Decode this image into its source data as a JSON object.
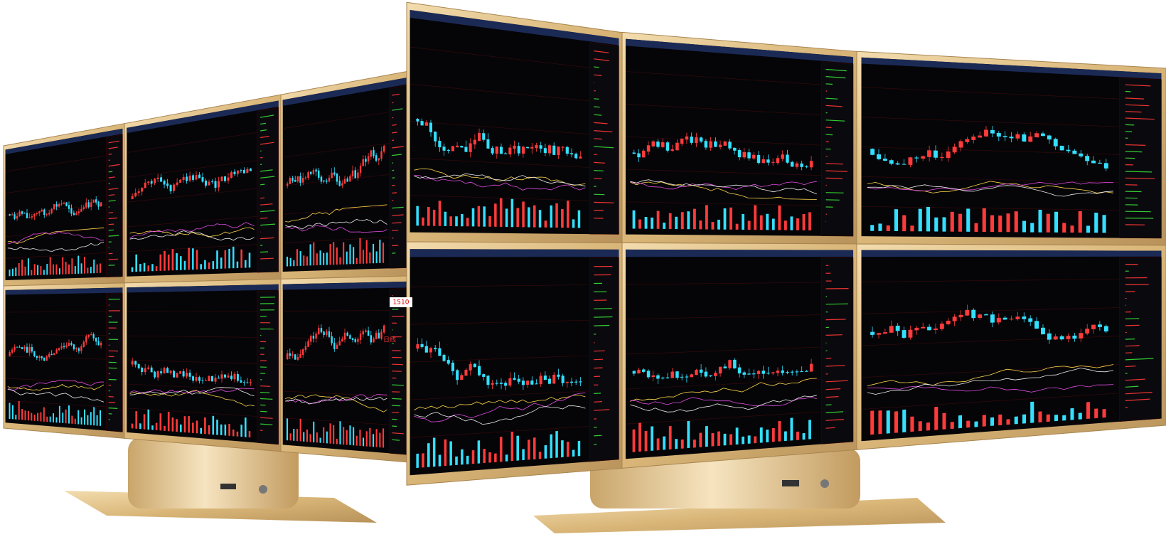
{
  "labels": {
    "price_tag": "1510",
    "period": "日线"
  }
}
